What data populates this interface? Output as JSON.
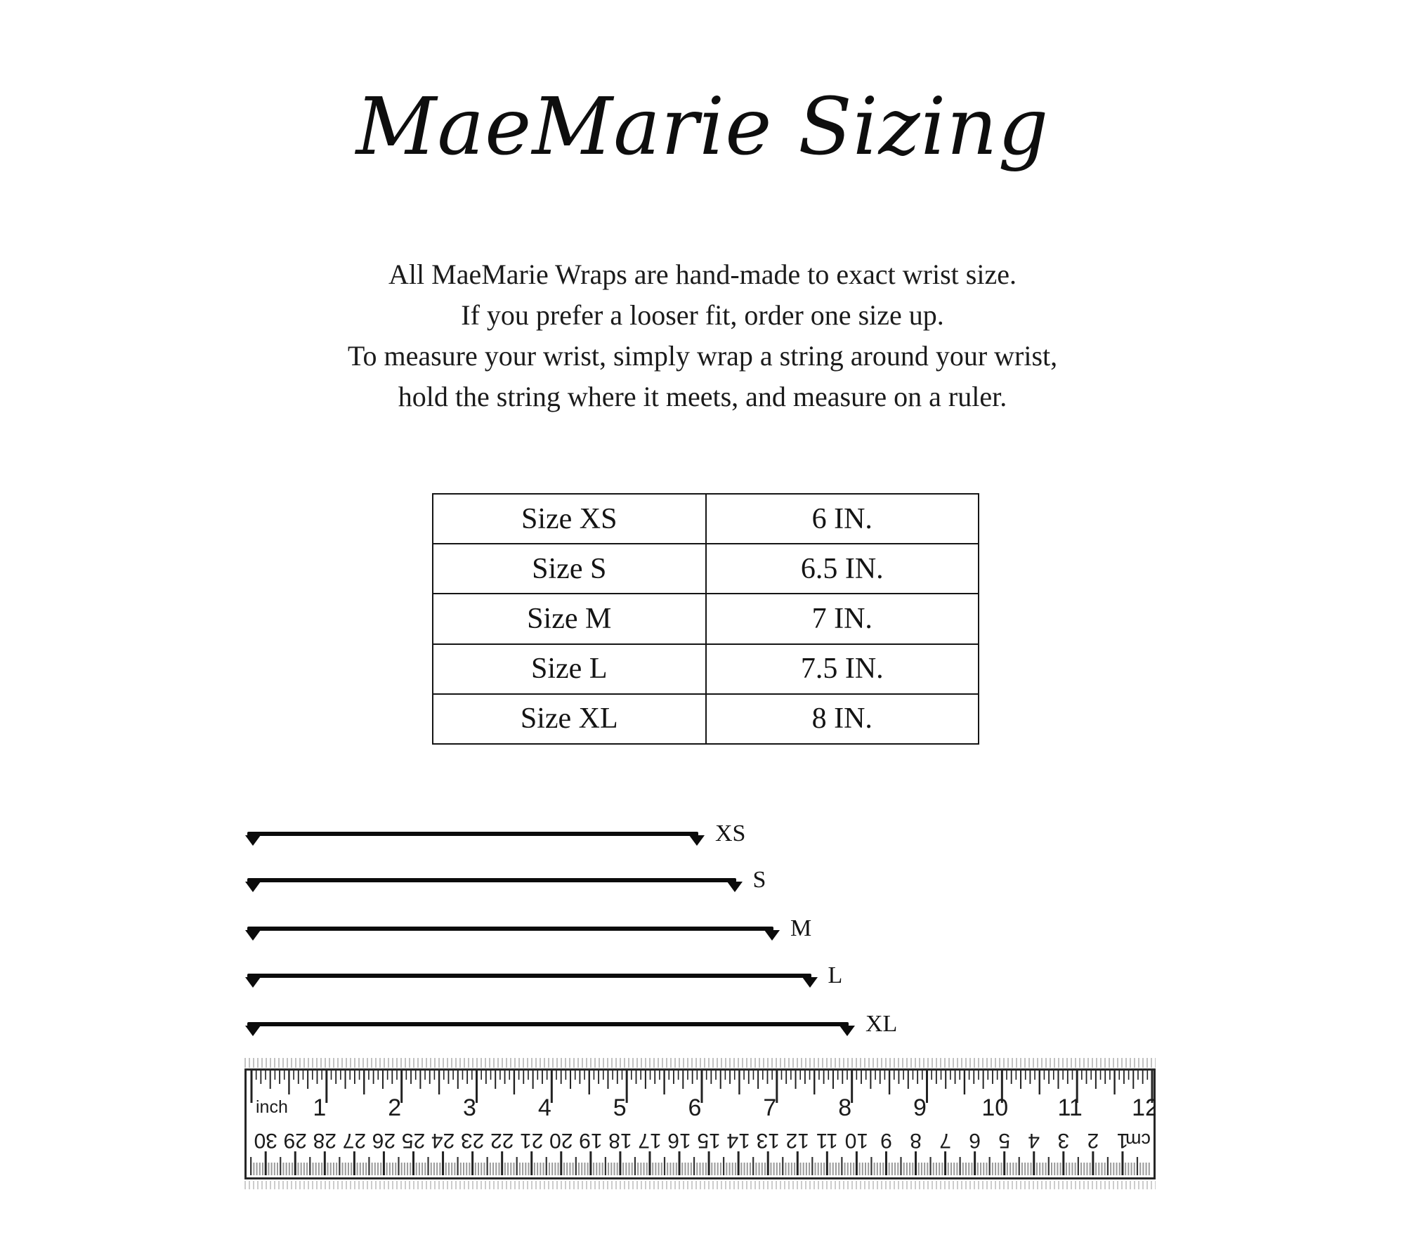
{
  "page": {
    "title": "MaeMarie Sizing",
    "background": "#ffffff",
    "ink": "#141414"
  },
  "intro": {
    "lines": [
      "All MaeMarie Wraps are hand-made to exact wrist size.",
      "If you prefer a looser fit, order one size up.",
      "To measure your wrist, simply wrap a string around your wrist,",
      "hold the string where it meets, and measure on a ruler."
    ]
  },
  "size_table": {
    "rows": [
      {
        "label": "Size XS",
        "value": "6 IN."
      },
      {
        "label": "Size S",
        "value": "6.5 IN."
      },
      {
        "label": "Size M",
        "value": "7 IN."
      },
      {
        "label": "Size L",
        "value": "7.5 IN."
      },
      {
        "label": "Size XL",
        "value": "8 IN."
      }
    ]
  },
  "size_guide": {
    "arrows": [
      {
        "label": "XS",
        "inches": 6
      },
      {
        "label": "S",
        "inches": 6.5
      },
      {
        "label": "M",
        "inches": 7
      },
      {
        "label": "L",
        "inches": 7.5
      },
      {
        "label": "XL",
        "inches": 8
      }
    ]
  },
  "ruler": {
    "inch_unit": "inch",
    "cm_unit": "cm",
    "inch_numbers": [
      1,
      2,
      3,
      4,
      5,
      6,
      7,
      8,
      9,
      10,
      11,
      12
    ],
    "cm_numbers": [
      1,
      2,
      3,
      4,
      5,
      6,
      7,
      8,
      9,
      10,
      11,
      12,
      13,
      14,
      15,
      16,
      17,
      18,
      19,
      20,
      21,
      22,
      23,
      24,
      25,
      26,
      27,
      28,
      29,
      30
    ],
    "inches_total": 12,
    "cm_total": 30
  }
}
